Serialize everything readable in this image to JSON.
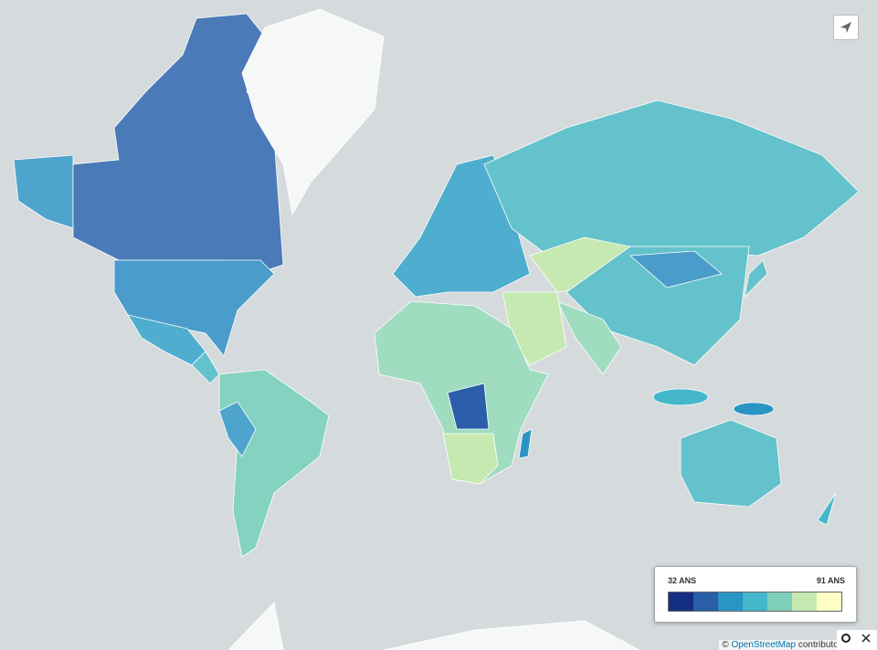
{
  "legend": {
    "min_label": "32 ANS",
    "max_label": "91 ANS",
    "colors": [
      "#142f82",
      "#2a5ea8",
      "#2a94c2",
      "#45b7cb",
      "#7fd0bb",
      "#c6e9b2",
      "#ffffc4"
    ]
  },
  "attribution": {
    "prefix": "©",
    "link": "OpenStreetMap",
    "suffix": "contributors, ©"
  }
}
